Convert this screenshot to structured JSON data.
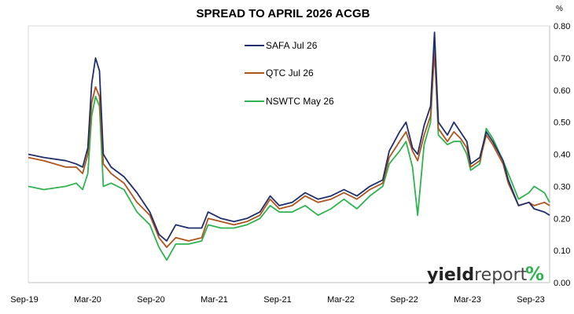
{
  "chart_data": {
    "type": "line",
    "title": "SPREAD TO APRIL 2026 ACGB",
    "xlabel": "",
    "ylabel": "",
    "y_unit": "%",
    "ylim": [
      0.0,
      0.8
    ],
    "y_ticks": [
      "0.00",
      "0.10",
      "0.20",
      "0.30",
      "0.40",
      "0.50",
      "0.60",
      "0.70",
      "0.80"
    ],
    "y_axis_side": "right",
    "x_range": [
      "2019-09",
      "2023-09"
    ],
    "x_ticks": [
      "Sep-19",
      "Mar-20",
      "Sep-20",
      "Mar-21",
      "Sep-21",
      "Mar-22",
      "Sep-22",
      "Mar-23",
      "Sep-23"
    ],
    "grid": false,
    "legend_position": "top-center",
    "series": [
      {
        "name": "SAFA Jul 26",
        "color": "#1f2f6b",
        "points": [
          [
            2019.71,
            0.4
          ],
          [
            2019.83,
            0.39
          ],
          [
            2020.0,
            0.38
          ],
          [
            2020.08,
            0.37
          ],
          [
            2020.13,
            0.36
          ],
          [
            2020.17,
            0.42
          ],
          [
            2020.2,
            0.62
          ],
          [
            2020.23,
            0.7
          ],
          [
            2020.26,
            0.66
          ],
          [
            2020.29,
            0.4
          ],
          [
            2020.35,
            0.36
          ],
          [
            2020.45,
            0.33
          ],
          [
            2020.55,
            0.28
          ],
          [
            2020.65,
            0.22
          ],
          [
            2020.72,
            0.15
          ],
          [
            2020.78,
            0.13
          ],
          [
            2020.85,
            0.18
          ],
          [
            2020.95,
            0.17
          ],
          [
            2021.05,
            0.17
          ],
          [
            2021.1,
            0.22
          ],
          [
            2021.2,
            0.2
          ],
          [
            2021.3,
            0.19
          ],
          [
            2021.4,
            0.2
          ],
          [
            2021.5,
            0.22
          ],
          [
            2021.58,
            0.27
          ],
          [
            2021.65,
            0.24
          ],
          [
            2021.75,
            0.25
          ],
          [
            2021.85,
            0.28
          ],
          [
            2021.95,
            0.26
          ],
          [
            2022.05,
            0.27
          ],
          [
            2022.15,
            0.29
          ],
          [
            2022.25,
            0.27
          ],
          [
            2022.35,
            0.3
          ],
          [
            2022.45,
            0.32
          ],
          [
            2022.5,
            0.41
          ],
          [
            2022.58,
            0.47
          ],
          [
            2022.63,
            0.5
          ],
          [
            2022.68,
            0.42
          ],
          [
            2022.72,
            0.4
          ],
          [
            2022.77,
            0.49
          ],
          [
            2022.82,
            0.55
          ],
          [
            2022.85,
            0.78
          ],
          [
            2022.88,
            0.5
          ],
          [
            2022.95,
            0.46
          ],
          [
            2023.0,
            0.5
          ],
          [
            2023.05,
            0.47
          ],
          [
            2023.1,
            0.44
          ],
          [
            2023.13,
            0.37
          ],
          [
            2023.2,
            0.39
          ],
          [
            2023.25,
            0.47
          ],
          [
            2023.3,
            0.44
          ],
          [
            2023.38,
            0.38
          ],
          [
            2023.42,
            0.32
          ],
          [
            2023.5,
            0.24
          ],
          [
            2023.58,
            0.25
          ],
          [
            2023.62,
            0.23
          ],
          [
            2023.7,
            0.22
          ],
          [
            2023.74,
            0.21
          ]
        ]
      },
      {
        "name": "QTC Jul 26",
        "color": "#b0541e",
        "points": [
          [
            2019.71,
            0.39
          ],
          [
            2019.83,
            0.38
          ],
          [
            2020.0,
            0.36
          ],
          [
            2020.08,
            0.36
          ],
          [
            2020.13,
            0.34
          ],
          [
            2020.17,
            0.4
          ],
          [
            2020.2,
            0.56
          ],
          [
            2020.23,
            0.61
          ],
          [
            2020.26,
            0.58
          ],
          [
            2020.29,
            0.37
          ],
          [
            2020.35,
            0.34
          ],
          [
            2020.45,
            0.31
          ],
          [
            2020.55,
            0.25
          ],
          [
            2020.65,
            0.21
          ],
          [
            2020.72,
            0.14
          ],
          [
            2020.78,
            0.11
          ],
          [
            2020.85,
            0.14
          ],
          [
            2020.95,
            0.13
          ],
          [
            2021.05,
            0.14
          ],
          [
            2021.1,
            0.2
          ],
          [
            2021.2,
            0.19
          ],
          [
            2021.3,
            0.18
          ],
          [
            2021.4,
            0.19
          ],
          [
            2021.5,
            0.21
          ],
          [
            2021.58,
            0.26
          ],
          [
            2021.65,
            0.23
          ],
          [
            2021.75,
            0.24
          ],
          [
            2021.85,
            0.27
          ],
          [
            2021.95,
            0.25
          ],
          [
            2022.05,
            0.26
          ],
          [
            2022.15,
            0.28
          ],
          [
            2022.25,
            0.26
          ],
          [
            2022.35,
            0.29
          ],
          [
            2022.45,
            0.31
          ],
          [
            2022.5,
            0.39
          ],
          [
            2022.58,
            0.44
          ],
          [
            2022.63,
            0.47
          ],
          [
            2022.68,
            0.41
          ],
          [
            2022.72,
            0.38
          ],
          [
            2022.77,
            0.46
          ],
          [
            2022.82,
            0.52
          ],
          [
            2022.85,
            0.72
          ],
          [
            2022.88,
            0.48
          ],
          [
            2022.95,
            0.44
          ],
          [
            2023.0,
            0.47
          ],
          [
            2023.05,
            0.45
          ],
          [
            2023.1,
            0.42
          ],
          [
            2023.13,
            0.36
          ],
          [
            2023.2,
            0.38
          ],
          [
            2023.25,
            0.46
          ],
          [
            2023.3,
            0.43
          ],
          [
            2023.38,
            0.37
          ],
          [
            2023.42,
            0.31
          ],
          [
            2023.5,
            0.24
          ],
          [
            2023.58,
            0.25
          ],
          [
            2023.62,
            0.24
          ],
          [
            2023.7,
            0.25
          ],
          [
            2023.74,
            0.24
          ]
        ]
      },
      {
        "name": "NSWTC May 26",
        "color": "#2fb350",
        "points": [
          [
            2019.71,
            0.3
          ],
          [
            2019.83,
            0.29
          ],
          [
            2020.0,
            0.3
          ],
          [
            2020.08,
            0.31
          ],
          [
            2020.13,
            0.29
          ],
          [
            2020.17,
            0.34
          ],
          [
            2020.2,
            0.52
          ],
          [
            2020.23,
            0.58
          ],
          [
            2020.26,
            0.55
          ],
          [
            2020.29,
            0.3
          ],
          [
            2020.35,
            0.31
          ],
          [
            2020.45,
            0.29
          ],
          [
            2020.55,
            0.22
          ],
          [
            2020.65,
            0.18
          ],
          [
            2020.72,
            0.11
          ],
          [
            2020.78,
            0.07
          ],
          [
            2020.85,
            0.12
          ],
          [
            2020.95,
            0.12
          ],
          [
            2021.05,
            0.13
          ],
          [
            2021.1,
            0.18
          ],
          [
            2021.2,
            0.17
          ],
          [
            2021.3,
            0.17
          ],
          [
            2021.4,
            0.18
          ],
          [
            2021.5,
            0.2
          ],
          [
            2021.58,
            0.24
          ],
          [
            2021.65,
            0.22
          ],
          [
            2021.75,
            0.22
          ],
          [
            2021.85,
            0.24
          ],
          [
            2021.95,
            0.21
          ],
          [
            2022.05,
            0.23
          ],
          [
            2022.15,
            0.26
          ],
          [
            2022.25,
            0.23
          ],
          [
            2022.35,
            0.27
          ],
          [
            2022.45,
            0.3
          ],
          [
            2022.5,
            0.37
          ],
          [
            2022.58,
            0.41
          ],
          [
            2022.63,
            0.44
          ],
          [
            2022.68,
            0.36
          ],
          [
            2022.72,
            0.21
          ],
          [
            2022.77,
            0.43
          ],
          [
            2022.82,
            0.5
          ],
          [
            2022.85,
            0.74
          ],
          [
            2022.88,
            0.46
          ],
          [
            2022.95,
            0.43
          ],
          [
            2023.0,
            0.44
          ],
          [
            2023.05,
            0.44
          ],
          [
            2023.1,
            0.4
          ],
          [
            2023.13,
            0.35
          ],
          [
            2023.2,
            0.37
          ],
          [
            2023.25,
            0.48
          ],
          [
            2023.3,
            0.45
          ],
          [
            2023.38,
            0.38
          ],
          [
            2023.42,
            0.34
          ],
          [
            2023.5,
            0.26
          ],
          [
            2023.58,
            0.28
          ],
          [
            2023.62,
            0.3
          ],
          [
            2023.7,
            0.28
          ],
          [
            2023.74,
            0.25
          ]
        ]
      }
    ]
  },
  "brand": {
    "name_bold": "yield",
    "name_regular": "report",
    "symbol": "%",
    "green": "#2fb350",
    "red": "#d9342b"
  }
}
